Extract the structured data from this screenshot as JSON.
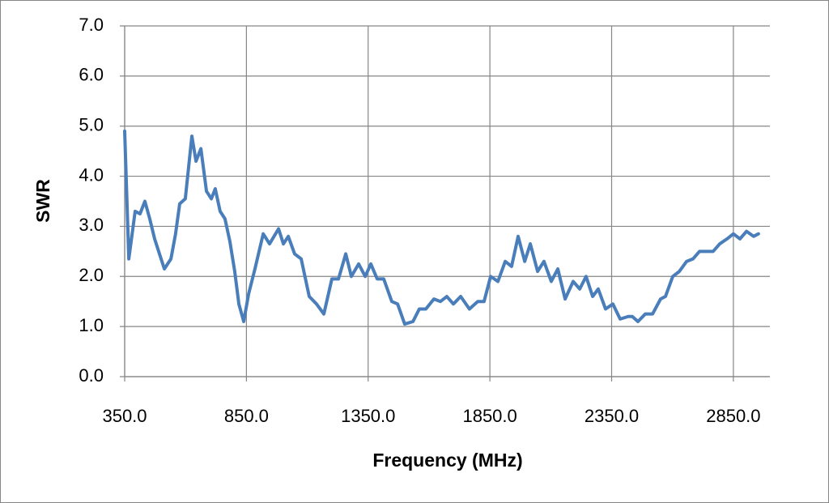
{
  "chart_data": {
    "type": "line",
    "xlabel": "Frequency (MHz)",
    "ylabel": "SWR",
    "x": [
      350,
      367,
      393,
      413,
      433,
      453,
      473,
      493,
      513,
      540,
      559,
      576,
      599,
      626,
      643,
      663,
      686,
      706,
      722,
      742,
      762,
      782,
      802,
      819,
      839,
      859,
      885,
      919,
      945,
      982,
      1002,
      1022,
      1048,
      1075,
      1108,
      1138,
      1168,
      1201,
      1228,
      1258,
      1281,
      1311,
      1338,
      1361,
      1387,
      1414,
      1447,
      1471,
      1500,
      1534,
      1560,
      1587,
      1620,
      1647,
      1673,
      1700,
      1730,
      1766,
      1800,
      1826,
      1853,
      1883,
      1913,
      1939,
      1966,
      1993,
      2016,
      2046,
      2072,
      2102,
      2129,
      2159,
      2192,
      2219,
      2245,
      2272,
      2295,
      2325,
      2355,
      2385,
      2418,
      2435,
      2458,
      2488,
      2518,
      2551,
      2571,
      2601,
      2628,
      2658,
      2684,
      2711,
      2741,
      2767,
      2794,
      2824,
      2850,
      2877,
      2904,
      2933,
      2953
    ],
    "series": [
      {
        "name": "SWR",
        "color": "#4a7ebb",
        "values": [
          4.9,
          2.35,
          3.3,
          3.25,
          3.5,
          3.15,
          2.75,
          2.45,
          2.15,
          2.35,
          2.85,
          3.45,
          3.55,
          4.8,
          4.3,
          4.55,
          3.7,
          3.55,
          3.75,
          3.3,
          3.15,
          2.7,
          2.1,
          1.45,
          1.1,
          1.65,
          2.15,
          2.85,
          2.65,
          2.95,
          2.65,
          2.8,
          2.45,
          2.35,
          1.6,
          1.45,
          1.25,
          1.95,
          1.95,
          2.45,
          2.0,
          2.25,
          2.0,
          2.25,
          1.95,
          1.95,
          1.5,
          1.45,
          1.05,
          1.1,
          1.35,
          1.35,
          1.55,
          1.5,
          1.6,
          1.45,
          1.6,
          1.35,
          1.5,
          1.5,
          2.0,
          1.9,
          2.3,
          2.2,
          2.8,
          2.3,
          2.65,
          2.1,
          2.3,
          1.9,
          2.15,
          1.55,
          1.9,
          1.75,
          2.0,
          1.6,
          1.75,
          1.35,
          1.45,
          1.15,
          1.2,
          1.2,
          1.1,
          1.25,
          1.25,
          1.55,
          1.6,
          2.0,
          2.1,
          2.3,
          2.35,
          2.5,
          2.5,
          2.5,
          2.65,
          2.75,
          2.85,
          2.75,
          2.9,
          2.8,
          2.85
        ]
      }
    ],
    "xlim": [
      350,
      3000
    ],
    "xticks": [
      {
        "value": 350,
        "label": "350.0"
      },
      {
        "value": 850,
        "label": "850.0"
      },
      {
        "value": 1350,
        "label": "1350.0"
      },
      {
        "value": 1850,
        "label": "1850.0"
      },
      {
        "value": 2350,
        "label": "2350.0"
      },
      {
        "value": 2850,
        "label": "2850.0"
      }
    ],
    "ylim": [
      0,
      7
    ],
    "yticks": [
      {
        "value": 0,
        "label": "0.0"
      },
      {
        "value": 1,
        "label": "1.0"
      },
      {
        "value": 2,
        "label": "2.0"
      },
      {
        "value": 3,
        "label": "3.0"
      },
      {
        "value": 4,
        "label": "4.0"
      },
      {
        "value": 5,
        "label": "5.0"
      },
      {
        "value": 6,
        "label": "6.0"
      },
      {
        "value": 7,
        "label": "7.0"
      }
    ],
    "grid": true
  }
}
